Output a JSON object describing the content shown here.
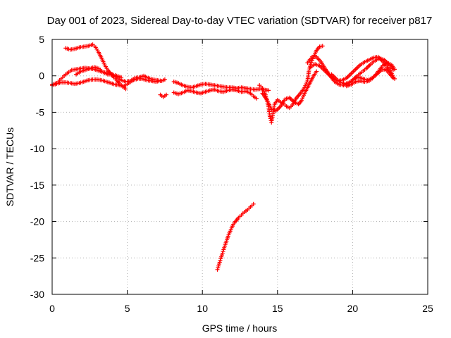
{
  "chart_data": {
    "type": "scatter",
    "title": "Day 001 of 2023, Sidereal Day-to-day VTEC variation (SDTVAR) for receiver p817",
    "xlabel": "GPS time / hours",
    "ylabel": "SDTVAR / TECUs",
    "xlim": [
      0,
      25
    ],
    "ylim": [
      -30,
      5
    ],
    "xticks": [
      0,
      5,
      10,
      15,
      20,
      25
    ],
    "xtick_labels": [
      "0",
      "5",
      "10",
      "15",
      "20",
      "25"
    ],
    "yticks": [
      5,
      0,
      -5,
      -10,
      -15,
      -20,
      -25,
      -30
    ],
    "ytick_labels": [
      "5",
      "0",
      "-5",
      "-10",
      "-15",
      "-20",
      "-25",
      "-30"
    ],
    "grid": true,
    "legend": "none",
    "marker": "plus",
    "color": "#ff0000",
    "series": [
      {
        "name": "arc-upper-early",
        "points": [
          [
            0.0,
            -1.2
          ],
          [
            0.3,
            -1.0
          ],
          [
            0.5,
            -0.6
          ],
          [
            0.7,
            -0.2
          ],
          [
            0.9,
            0.2
          ],
          [
            1.1,
            0.5
          ],
          [
            1.3,
            0.8
          ],
          [
            1.6,
            0.9
          ],
          [
            1.9,
            1.0
          ],
          [
            2.2,
            1.1
          ],
          [
            2.5,
            1.0
          ],
          [
            2.8,
            0.9
          ],
          [
            3.1,
            0.7
          ],
          [
            3.4,
            0.5
          ],
          [
            3.7,
            0.4
          ],
          [
            4.0,
            0.2
          ],
          [
            4.3,
            0.0
          ],
          [
            4.6,
            -0.2
          ]
        ]
      },
      {
        "name": "arc-low-early",
        "points": [
          [
            0.0,
            -1.3
          ],
          [
            0.3,
            -1.1
          ],
          [
            0.6,
            -0.9
          ],
          [
            0.9,
            -0.9
          ],
          [
            1.2,
            -1.0
          ],
          [
            1.5,
            -1.1
          ],
          [
            1.8,
            -1.0
          ],
          [
            2.1,
            -0.8
          ],
          [
            2.4,
            -0.6
          ],
          [
            2.7,
            -0.5
          ],
          [
            3.0,
            -0.5
          ],
          [
            3.3,
            -0.6
          ],
          [
            3.6,
            -0.8
          ],
          [
            3.9,
            -1.0
          ],
          [
            4.2,
            -1.2
          ],
          [
            4.5,
            -1.3
          ],
          [
            4.8,
            -1.4
          ],
          [
            5.1,
            -1.0
          ],
          [
            5.4,
            -0.6
          ],
          [
            5.7,
            -0.4
          ],
          [
            6.0,
            -0.4
          ],
          [
            6.3,
            -0.6
          ],
          [
            6.6,
            -0.7
          ],
          [
            6.9,
            -0.8
          ],
          [
            7.2,
            -0.7
          ]
        ]
      },
      {
        "name": "arc-high-early",
        "points": [
          [
            0.9,
            3.8
          ],
          [
            1.2,
            3.6
          ],
          [
            1.5,
            3.7
          ],
          [
            1.8,
            3.9
          ],
          [
            2.1,
            4.0
          ],
          [
            2.4,
            4.1
          ],
          [
            2.7,
            4.3
          ],
          [
            2.9,
            3.9
          ],
          [
            3.1,
            3.2
          ],
          [
            3.3,
            2.4
          ],
          [
            3.5,
            1.5
          ],
          [
            3.7,
            0.8
          ],
          [
            3.9,
            0.3
          ],
          [
            4.1,
            -0.2
          ],
          [
            4.3,
            -0.6
          ],
          [
            4.5,
            -1.1
          ],
          [
            4.7,
            -1.5
          ],
          [
            4.9,
            -1.8
          ]
        ]
      },
      {
        "name": "arc-mid-early",
        "points": [
          [
            1.6,
            0.2
          ],
          [
            1.9,
            0.6
          ],
          [
            2.2,
            0.8
          ],
          [
            2.5,
            1.0
          ],
          [
            2.8,
            1.2
          ],
          [
            3.1,
            1.0
          ],
          [
            3.4,
            0.5
          ],
          [
            3.7,
            0.2
          ],
          [
            4.0,
            0.2
          ],
          [
            4.3,
            -0.2
          ],
          [
            4.6,
            -0.6
          ],
          [
            4.9,
            -0.8
          ],
          [
            5.2,
            -0.7
          ],
          [
            5.5,
            -0.3
          ],
          [
            5.8,
            -0.2
          ],
          [
            6.1,
            0.0
          ],
          [
            6.4,
            -0.3
          ],
          [
            6.7,
            -0.5
          ],
          [
            7.0,
            -0.6
          ],
          [
            7.3,
            -0.7
          ],
          [
            7.5,
            -0.5
          ]
        ]
      },
      {
        "name": "short-dip",
        "points": [
          [
            7.2,
            -2.6
          ],
          [
            7.4,
            -2.9
          ],
          [
            7.6,
            -2.6
          ]
        ]
      },
      {
        "name": "midday-band-upper",
        "points": [
          [
            8.1,
            -0.8
          ],
          [
            8.4,
            -1.0
          ],
          [
            8.7,
            -1.3
          ],
          [
            9.0,
            -1.5
          ],
          [
            9.3,
            -1.6
          ],
          [
            9.6,
            -1.4
          ],
          [
            9.9,
            -1.2
          ],
          [
            10.2,
            -1.1
          ],
          [
            10.5,
            -1.2
          ],
          [
            10.8,
            -1.3
          ],
          [
            11.1,
            -1.4
          ],
          [
            11.4,
            -1.5
          ],
          [
            11.7,
            -1.6
          ],
          [
            12.0,
            -1.6
          ],
          [
            12.3,
            -1.7
          ],
          [
            12.6,
            -1.6
          ],
          [
            12.9,
            -1.7
          ],
          [
            13.2,
            -1.8
          ],
          [
            13.5,
            -1.9
          ],
          [
            13.8,
            -1.8
          ],
          [
            14.1,
            -1.9
          ],
          [
            14.4,
            -2.0
          ]
        ]
      },
      {
        "name": "midday-band-lower",
        "points": [
          [
            8.1,
            -2.3
          ],
          [
            8.4,
            -2.5
          ],
          [
            8.7,
            -2.3
          ],
          [
            9.0,
            -2.0
          ],
          [
            9.3,
            -2.1
          ],
          [
            9.6,
            -2.3
          ],
          [
            9.9,
            -2.4
          ],
          [
            10.2,
            -2.2
          ],
          [
            10.5,
            -2.0
          ],
          [
            10.8,
            -1.9
          ],
          [
            11.1,
            -2.1
          ],
          [
            11.4,
            -2.2
          ],
          [
            11.7,
            -2.0
          ],
          [
            12.0,
            -1.9
          ],
          [
            12.3,
            -2.0
          ],
          [
            12.6,
            -2.2
          ],
          [
            12.9,
            -2.1
          ],
          [
            13.2,
            -2.4
          ],
          [
            13.4,
            -2.8
          ],
          [
            13.6,
            -3.1
          ]
        ]
      },
      {
        "name": "afternoon-dip-a",
        "points": [
          [
            13.8,
            -1.3
          ],
          [
            14.0,
            -1.7
          ],
          [
            14.2,
            -2.6
          ],
          [
            14.4,
            -4.2
          ],
          [
            14.5,
            -5.6
          ],
          [
            14.6,
            -6.4
          ],
          [
            14.7,
            -5.2
          ],
          [
            14.8,
            -3.9
          ],
          [
            15.0,
            -3.3
          ],
          [
            15.2,
            -3.6
          ],
          [
            15.4,
            -3.8
          ],
          [
            15.6,
            -4.2
          ],
          [
            15.8,
            -4.4
          ],
          [
            16.0,
            -4.0
          ],
          [
            16.2,
            -3.2
          ],
          [
            16.4,
            -2.7
          ],
          [
            16.6,
            -2.2
          ],
          [
            16.8,
            -1.6
          ],
          [
            17.0,
            -0.6
          ],
          [
            17.1,
            0.8
          ],
          [
            17.2,
            1.6
          ],
          [
            17.4,
            2.6
          ],
          [
            17.6,
            3.5
          ],
          [
            17.8,
            4.0
          ],
          [
            18.0,
            4.1
          ]
        ]
      },
      {
        "name": "afternoon-dip-b",
        "points": [
          [
            14.0,
            -2.4
          ],
          [
            14.3,
            -3.3
          ],
          [
            14.6,
            -4.6
          ],
          [
            14.9,
            -4.8
          ],
          [
            15.2,
            -4.2
          ],
          [
            15.5,
            -3.2
          ],
          [
            15.8,
            -3.0
          ],
          [
            16.1,
            -3.6
          ],
          [
            16.4,
            -3.9
          ],
          [
            16.6,
            -3.4
          ],
          [
            16.8,
            -2.4
          ],
          [
            17.0,
            -1.6
          ],
          [
            17.2,
            -0.8
          ],
          [
            17.4,
            0.0
          ],
          [
            17.6,
            0.6
          ]
        ]
      },
      {
        "name": "evening-wave-a",
        "points": [
          [
            17.0,
            1.8
          ],
          [
            17.3,
            2.6
          ],
          [
            17.6,
            2.6
          ],
          [
            17.9,
            1.9
          ],
          [
            18.2,
            0.9
          ],
          [
            18.5,
            0.0
          ],
          [
            18.8,
            -0.8
          ],
          [
            19.1,
            -1.2
          ],
          [
            19.4,
            -1.3
          ],
          [
            19.7,
            -1.1
          ],
          [
            20.0,
            -0.6
          ],
          [
            20.3,
            0.0
          ],
          [
            20.6,
            0.5
          ],
          [
            20.9,
            1.0
          ],
          [
            21.2,
            1.6
          ],
          [
            21.5,
            2.1
          ],
          [
            21.8,
            2.4
          ],
          [
            22.1,
            2.2
          ],
          [
            22.4,
            1.6
          ],
          [
            22.7,
            0.8
          ]
        ]
      },
      {
        "name": "evening-wave-b",
        "points": [
          [
            17.2,
            1.2
          ],
          [
            17.5,
            1.6
          ],
          [
            17.8,
            1.4
          ],
          [
            18.1,
            0.8
          ],
          [
            18.4,
            0.2
          ],
          [
            18.7,
            -0.4
          ],
          [
            19.0,
            -0.7
          ],
          [
            19.3,
            -0.6
          ],
          [
            19.6,
            -0.3
          ],
          [
            19.9,
            0.3
          ],
          [
            20.2,
            0.9
          ],
          [
            20.5,
            1.5
          ],
          [
            20.8,
            1.9
          ],
          [
            21.1,
            2.2
          ],
          [
            21.4,
            2.5
          ],
          [
            21.7,
            2.6
          ],
          [
            22.0,
            2.0
          ],
          [
            22.3,
            1.2
          ],
          [
            22.6,
            0.3
          ],
          [
            22.8,
            -0.4
          ]
        ]
      },
      {
        "name": "evening-wave-c",
        "points": [
          [
            18.6,
            0.2
          ],
          [
            18.9,
            -0.4
          ],
          [
            19.2,
            -0.9
          ],
          [
            19.5,
            -1.1
          ],
          [
            19.8,
            -0.9
          ],
          [
            20.1,
            -0.4
          ],
          [
            20.4,
            -0.2
          ],
          [
            20.7,
            -0.4
          ],
          [
            21.0,
            -0.6
          ],
          [
            21.3,
            -0.3
          ],
          [
            21.6,
            0.2
          ],
          [
            21.9,
            0.8
          ],
          [
            22.2,
            0.9
          ],
          [
            22.5,
            0.2
          ],
          [
            22.7,
            -0.3
          ]
        ]
      },
      {
        "name": "evening-wave-d",
        "points": [
          [
            19.6,
            -1.4
          ],
          [
            19.9,
            -1.2
          ],
          [
            20.2,
            -0.8
          ],
          [
            20.5,
            -0.7
          ],
          [
            20.8,
            -0.8
          ],
          [
            21.1,
            -0.7
          ],
          [
            21.4,
            -0.2
          ],
          [
            21.7,
            0.6
          ],
          [
            22.0,
            1.4
          ],
          [
            22.3,
            1.8
          ],
          [
            22.6,
            1.5
          ],
          [
            22.8,
            0.9
          ]
        ]
      },
      {
        "name": "detached-arc",
        "points": [
          [
            11.0,
            -26.6
          ],
          [
            11.15,
            -25.6
          ],
          [
            11.3,
            -24.6
          ],
          [
            11.45,
            -23.6
          ],
          [
            11.6,
            -22.7
          ],
          [
            11.75,
            -21.8
          ],
          [
            11.9,
            -21.1
          ],
          [
            12.05,
            -20.4
          ],
          [
            12.2,
            -20.0
          ],
          [
            12.4,
            -19.5
          ],
          [
            12.6,
            -19.1
          ],
          [
            12.8,
            -18.7
          ],
          [
            13.0,
            -18.4
          ],
          [
            13.2,
            -18.0
          ],
          [
            13.4,
            -17.6
          ]
        ]
      }
    ]
  }
}
